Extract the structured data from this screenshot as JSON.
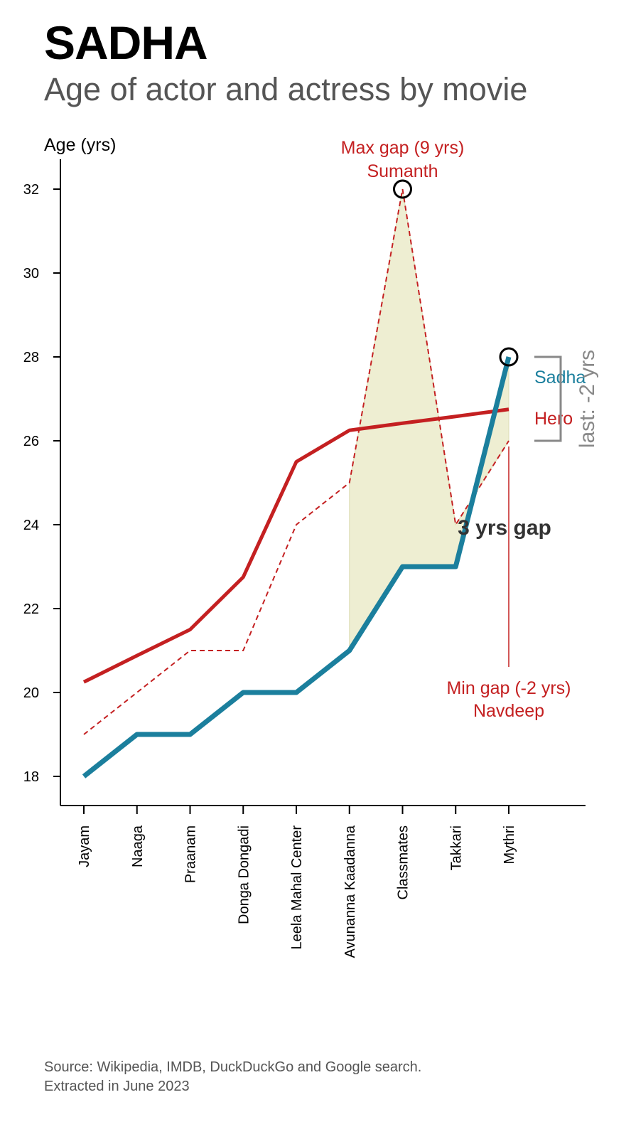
{
  "header": {
    "title": "SADHA",
    "subtitle": "Age of actor and actress by movie"
  },
  "source": {
    "line1": "Source: Wikipedia, IMDB, DuckDuckGo and Google search.",
    "line2": "Extracted in June 2023"
  },
  "colors": {
    "actress": "#1b7f9d",
    "actor": "#c42021",
    "gap_fill": "#eeeed2",
    "axis": "#000000",
    "bracket": "#888888",
    "gap_text": "#333333"
  },
  "chart_data": {
    "type": "line",
    "ylabel": "Age (yrs)",
    "ylim": [
      17.3,
      32.7
    ],
    "yticks": [
      18,
      20,
      22,
      24,
      26,
      28,
      30,
      32
    ],
    "grid": false,
    "categories": [
      "Jayam",
      "Naaga",
      "Praanam",
      "Donga Dongadi",
      "Leela Mahal Center",
      "Avunanna Kaadanna",
      "Classmates",
      "Takkari",
      "Mythri"
    ],
    "series": [
      {
        "name": "Sadha",
        "style": "solid-thick",
        "values": [
          18,
          19,
          19,
          20,
          20,
          21,
          23,
          23,
          28
        ]
      },
      {
        "name": "",
        "style": "dashed",
        "values": [
          19,
          20,
          21,
          21,
          24,
          25,
          32,
          24,
          26
        ]
      },
      {
        "name": "Hero",
        "style": "solid",
        "values": [
          20.25,
          20.88,
          21.5,
          22.75,
          25.5,
          26.25,
          26.42,
          26.58,
          26.75
        ]
      }
    ],
    "shaded_gap_range": [
      "Avunanna Kaadanna",
      "Mythri"
    ],
    "annotations": {
      "max_gap": {
        "line1": "Max gap (9 yrs)",
        "line2": "Sumanth",
        "category": "Classmates",
        "value": 32
      },
      "min_gap": {
        "line1": "Min gap (-2 yrs)",
        "line2": "Navdeep",
        "category": "Mythri",
        "value": 28
      },
      "recent_gap": "3 yrs gap",
      "last_gap": "last: -2 yrs",
      "legend_actress": "Sadha",
      "legend_actor": "Hero"
    }
  }
}
